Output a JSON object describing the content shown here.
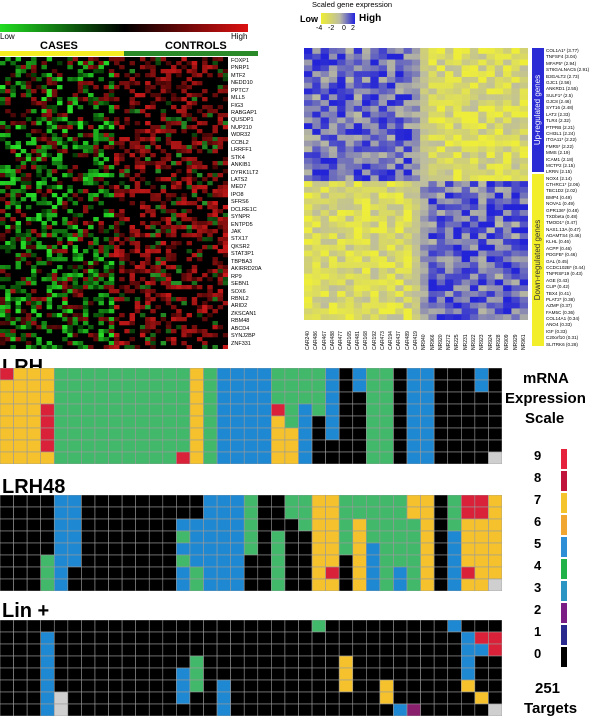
{
  "top_left": {
    "scale_low": "Low",
    "scale_high": "High",
    "group_cases": "CASES",
    "group_controls": "CONTROLS",
    "genes": [
      "FOXP1",
      "PNRP1",
      "MTF2",
      "NEDD10",
      "PPTC7",
      "MLL5",
      "FIG3",
      "RABGAP1",
      "QUSDP1",
      "NUP210",
      "WDR32",
      "CCBL2",
      "LRRFF1",
      "STK4",
      "ANKIB1",
      "DYRK1LT2",
      "LATS2",
      "MED7",
      "IPO8",
      "SFRS6",
      "DCLRE1C",
      "SYNPR",
      "ENTPD5",
      "JAK",
      "STX17",
      "QKSR2",
      "STAT3P1",
      "TBPBA3",
      "AKIRRD20A",
      "RP9",
      "SEBN1",
      "SOX6",
      "RBNL2",
      "ARID2",
      "ZKSCAN1",
      "RBM48",
      "ABCD4",
      "SYNJ2BP",
      "ZNF331"
    ],
    "colors": {
      "green": "#22dd22",
      "black": "#000000",
      "red": "#dd1111",
      "cases_bar": "#f4ee22",
      "controls_bar": "#2a8a2a"
    }
  },
  "top_right": {
    "legend_title": "Scaled gene expression",
    "legend_low": "Low",
    "legend_high": "High",
    "legend_ticks": [
      "-4",
      "-2",
      "0",
      "2"
    ],
    "up_label": "Up-regulated genes",
    "down_label": "Down-regulated genes",
    "up_genes": [
      "COL1A1* (3.77)",
      "TNFSF4 (3.04)",
      "MFAP5* (2.94)",
      "ST6GALNAC5 (2.91)",
      "B3GALT2 (2.73)",
      "GJC1 (2.56)",
      "ANKRD1 (2.55)",
      "SULF1* (2.5)",
      "GJC8 (2.46)",
      "SYT16 (2.48)",
      "LAT2 (2.33)",
      "TLR4 (2.32)",
      "PTPRB (2.21)",
      "CHI3L1 (2.24)",
      "ITGA11* (2.22)",
      "FMR5* (2.22)",
      "MMS (2.19)",
      "ICAM1 (2.18)",
      "MCTP2 (2.15)",
      "LRRN (2.15)",
      "NOX4 (2.14)",
      "CTHRC1* (2.06)",
      "TBC1D2 (2.02)"
    ],
    "down_genes": [
      "BMP4 (0.49)",
      "NOVA1 (0.49)",
      "GPR136* (0.48)",
      "TXDbeta (0.48)",
      "TMOD1* (0.47)",
      "NAS1.13A (0.47)",
      "ADAMTS4 (0.46)",
      "KLHL (0.46)",
      "ACPP (0.46)",
      "PDGFB* (0.46)",
      "GAL (0.45)",
      "CCDC102B* (0.44)",
      "TNFRSF19 (0.43)",
      "AGE (0.43)",
      "CLIP (0.42)",
      "TBX4 (0.41)",
      "PLAT2* (0.38)",
      "AZMP (0.37)",
      "FAM5C (0.36)",
      "COL14A1 (0.34)",
      "ANO4 (0.33)",
      "IGF (0.33)",
      "C20orf10 (0.31)",
      "SLITRK6 (0.28)"
    ],
    "columns": [
      "CAR240",
      "CAR486",
      "CAR467",
      "CAR488",
      "CAR477",
      "CAR165",
      "CAR481",
      "CAR168",
      "CAR192",
      "CAR473",
      "CAR194",
      "CAR437",
      "CAR489",
      "CAR419",
      "NR940",
      "NR966",
      "NR920",
      "NR272",
      "NR225",
      "NR231",
      "NR922",
      "NR923",
      "NR924",
      "NR928",
      "NR909",
      "NR929",
      "NR961"
    ],
    "colors": {
      "blue": "#2222dd",
      "yellow": "#eeee33",
      "gray": "#bcbca4",
      "up_bar": "#2b2bd6",
      "down_bar": "#f2ee2a"
    }
  },
  "panels": [
    {
      "title": "LRH"
    },
    {
      "title": "LRH48"
    },
    {
      "title": "Lin +"
    }
  ],
  "legend": {
    "title_line1": "mRNA",
    "title_line2": "Expression",
    "title_line3": "Scale",
    "levels": [
      {
        "label": "9",
        "color": "#e5213c"
      },
      {
        "label": "8",
        "color": "#c0143c"
      },
      {
        "label": "7",
        "color": "#f5c32c"
      },
      {
        "label": "6",
        "color": "#f0a630"
      },
      {
        "label": "5",
        "color": "#2e8ed6"
      },
      {
        "label": "4",
        "color": "#21b24a"
      },
      {
        "label": "3",
        "color": "#2b96c4"
      },
      {
        "label": "2",
        "color": "#7a1e86"
      },
      {
        "label": "1",
        "color": "#2a2a8e"
      },
      {
        "label": "0",
        "color": "#000000"
      }
    ],
    "count": "251",
    "count_label": "Targets"
  },
  "panel_colors": {
    "black": "#000000",
    "green": "#42b86a",
    "yellow": "#f5c22e",
    "blue": "#1e88d2",
    "red": "#d9223a",
    "gray": "#cfcfcf",
    "grid": "#9a9a9a"
  }
}
